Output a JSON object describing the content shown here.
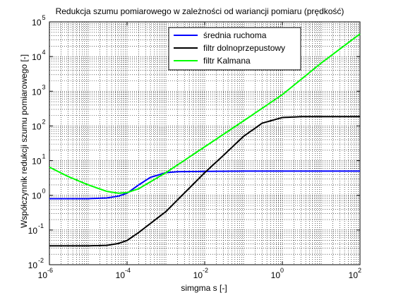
{
  "chart_data": {
    "type": "line",
    "title": "Redukcja szumu pomiarowego w zależności od wariancji pomiaru (prędkość)",
    "xlabel": "simgma s [-]",
    "ylabel": "Współczynnik redukcji szumu pomiarowego [-]",
    "x_scale": "log",
    "y_scale": "log",
    "xlim": [
      1e-06,
      100
    ],
    "ylim": [
      0.01,
      100000
    ],
    "grid": "dotted, major and minor",
    "legend_position": "top-right",
    "x_ticks": [
      {
        "base": "10",
        "exp": "-6"
      },
      {
        "base": "10",
        "exp": "-4"
      },
      {
        "base": "10",
        "exp": "-2"
      },
      {
        "base": "10",
        "exp": "0"
      },
      {
        "base": "10",
        "exp": "2"
      }
    ],
    "y_ticks": [
      {
        "base": "10",
        "exp": "-2"
      },
      {
        "base": "10",
        "exp": "-1"
      },
      {
        "base": "10",
        "exp": "0"
      },
      {
        "base": "10",
        "exp": "1"
      },
      {
        "base": "10",
        "exp": "2"
      },
      {
        "base": "10",
        "exp": "3"
      },
      {
        "base": "10",
        "exp": "4"
      },
      {
        "base": "10",
        "exp": "5"
      }
    ],
    "series": [
      {
        "name": "średnia ruchoma",
        "color": "#0000ff",
        "points": [
          [
            1e-06,
            0.8
          ],
          [
            1e-05,
            0.8
          ],
          [
            3e-05,
            0.84
          ],
          [
            6e-05,
            0.95
          ],
          [
            0.0001,
            1.15
          ],
          [
            0.0002,
            2.0
          ],
          [
            0.0004,
            3.3
          ],
          [
            0.001,
            4.5
          ],
          [
            0.002,
            4.8
          ],
          [
            0.01,
            4.9
          ],
          [
            0.1,
            5.0
          ],
          [
            1,
            5.0
          ],
          [
            10,
            5.0
          ],
          [
            100,
            5.0
          ]
        ]
      },
      {
        "name": "filtr dolnoprzepustowy",
        "color": "#000000",
        "points": [
          [
            1e-06,
            0.035
          ],
          [
            1e-05,
            0.035
          ],
          [
            3e-05,
            0.036
          ],
          [
            6e-05,
            0.041
          ],
          [
            0.0001,
            0.05
          ],
          [
            0.0002,
            0.085
          ],
          [
            0.001,
            0.34
          ],
          [
            0.01,
            4.5
          ],
          [
            0.03,
            14
          ],
          [
            0.1,
            50
          ],
          [
            0.3,
            120
          ],
          [
            1,
            175
          ],
          [
            3,
            185
          ],
          [
            10,
            185
          ],
          [
            100,
            185
          ]
        ]
      },
      {
        "name": "filtr Kalmana",
        "color": "#00ff00",
        "points": [
          [
            1e-06,
            6.5
          ],
          [
            3e-06,
            3.5
          ],
          [
            1e-05,
            2.0
          ],
          [
            3e-05,
            1.3
          ],
          [
            6e-05,
            1.15
          ],
          [
            0.0001,
            1.2
          ],
          [
            0.0002,
            1.55
          ],
          [
            0.001,
            4.5
          ],
          [
            0.01,
            25
          ],
          [
            0.1,
            140
          ],
          [
            1,
            800
          ],
          [
            10,
            6500
          ],
          [
            100,
            45000
          ]
        ]
      }
    ]
  }
}
